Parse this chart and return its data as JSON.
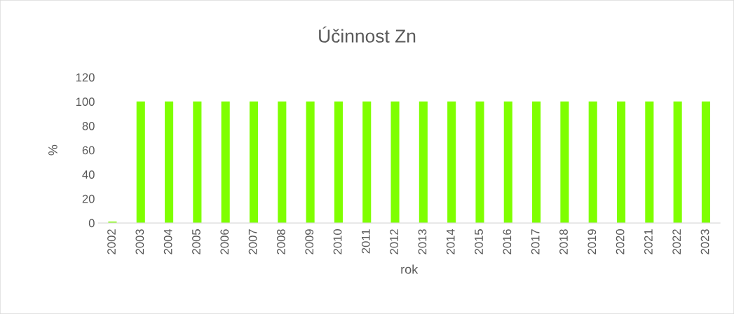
{
  "chart_data": {
    "type": "bar",
    "title": "Účinnost Zn",
    "xlabel": "rok",
    "ylabel": "%",
    "categories": [
      "2002",
      "2003",
      "2004",
      "2005",
      "2006",
      "2007",
      "2008",
      "2009",
      "2010",
      "2011",
      "2012",
      "2013",
      "2014",
      "2015",
      "2016",
      "2017",
      "2018",
      "2019",
      "2020",
      "2021",
      "2022",
      "2023"
    ],
    "values": [
      1,
      100,
      100,
      100,
      100,
      100,
      100,
      100,
      100,
      100,
      100,
      100,
      100,
      100,
      100,
      100,
      100,
      100,
      100,
      100,
      100,
      100
    ],
    "color": "#7fff00",
    "ylim": [
      0,
      120
    ],
    "yticks": [
      0,
      20,
      40,
      60,
      80,
      100,
      120
    ],
    "grid": false,
    "legend": false
  }
}
